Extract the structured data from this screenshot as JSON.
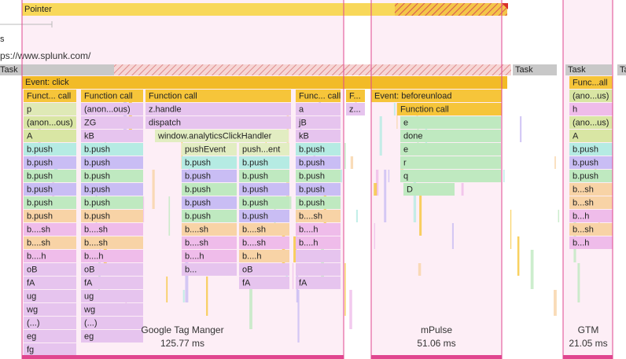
{
  "track": {
    "pointer": "Pointer",
    "thread_partial": "s",
    "url": "ps://www.splunk.com/",
    "tasks": [
      "Task",
      "Task",
      "Task",
      "Task"
    ]
  },
  "event_click": "Event: click",
  "stacks": [
    {
      "entries": [
        "Funct... call",
        "p",
        "(anon...ous)",
        "A",
        "b.push",
        "b.push",
        "b.push",
        "b.push",
        "b.push",
        "b.push",
        "b....sh",
        "b....sh",
        "b....h",
        "oB",
        "fA",
        "ug",
        "wg",
        "(...)",
        "eg",
        "fg"
      ]
    },
    {
      "entries": [
        "Function call",
        "(anon...ous)",
        "ZG",
        "kB",
        "b.push",
        "b.push",
        "b.push",
        "b.push",
        "b.push",
        "b.push",
        "b....sh",
        "b....sh",
        "b....h",
        "oB",
        "fA",
        "ug",
        "wg",
        "(...)",
        "eg"
      ]
    },
    {
      "entries": [
        "Function call",
        "z.handle",
        "dispatch"
      ]
    },
    {
      "entries": [
        "window.analyticsClickHandler"
      ]
    },
    {
      "entries": [
        "pushEvent",
        "b.push",
        "b.push",
        "b.push",
        "b.push",
        "b.push",
        "b....sh",
        "b....sh",
        "b....h",
        "b..."
      ]
    },
    {
      "entries": [
        "push...ent",
        "b.push",
        "b.push",
        "b.push",
        "b.push",
        "b.push",
        "b....sh",
        "b....sh",
        "b....h",
        "oB",
        "fA"
      ]
    },
    {
      "entries": [
        "Func... call",
        "a",
        "jB",
        "kB",
        "b.push",
        "b.push",
        "b.push",
        "b.push",
        "b.push",
        "b....sh",
        "b....h",
        "b....h",
        null,
        null,
        "fA"
      ]
    },
    {
      "entries": [
        "F...",
        "z..."
      ]
    },
    {
      "entries": [
        "Event: beforeunload"
      ]
    },
    {
      "entries": [
        "Function call"
      ]
    },
    {
      "entries": [
        "e",
        "done",
        "e",
        "r",
        "q"
      ]
    },
    {
      "entries": [
        "D"
      ]
    },
    {
      "entries": [
        "Func...all",
        "(ano...us)",
        "h",
        "(ano...us)",
        "A",
        "b.push",
        "b.push",
        "b.push",
        "b...sh",
        "b...sh",
        "b...h",
        "b...sh",
        "b...h"
      ]
    }
  ],
  "regions": [
    {
      "name": "Google Tag Manger",
      "duration": "125.77 ms"
    },
    {
      "name": "mPulse",
      "duration": "51.06 ms"
    },
    {
      "name": "GTM",
      "duration": "21.05 ms"
    }
  ]
}
